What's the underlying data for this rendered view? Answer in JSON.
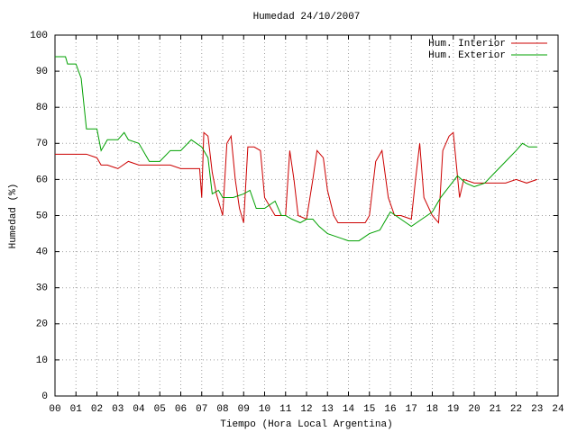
{
  "chart_data": {
    "type": "line",
    "title": "Humedad 24/10/2007",
    "x_label": "Tiempo (Hora Local Argentina)",
    "y_label": "Humedad (%)",
    "xlim": [
      0,
      24
    ],
    "ylim": [
      0,
      100
    ],
    "xticks": [
      {
        "value": 0,
        "label": "00"
      },
      {
        "value": 1,
        "label": "01"
      },
      {
        "value": 2,
        "label": "02"
      },
      {
        "value": 3,
        "label": "03"
      },
      {
        "value": 4,
        "label": "04"
      },
      {
        "value": 5,
        "label": "05"
      },
      {
        "value": 6,
        "label": "06"
      },
      {
        "value": 7,
        "label": "07"
      },
      {
        "value": 8,
        "label": "08"
      },
      {
        "value": 9,
        "label": "09"
      },
      10,
      11,
      12,
      13,
      14,
      15,
      16,
      17,
      18,
      19,
      20,
      21,
      22,
      23,
      24
    ],
    "yticks": [
      0,
      10,
      20,
      30,
      40,
      50,
      60,
      70,
      80,
      90,
      100
    ],
    "grid": true,
    "legend": "top-right",
    "series": [
      {
        "name": "Hum. Interior",
        "color": "#cc0000",
        "x": [
          0,
          0.5,
          1,
          1.5,
          2,
          2.2,
          2.5,
          3,
          3.5,
          4,
          4.5,
          5,
          5.5,
          6,
          6.5,
          6.9,
          7.0,
          7.1,
          7.3,
          7.5,
          7.7,
          8.0,
          8.2,
          8.4,
          8.6,
          8.8,
          9.0,
          9.2,
          9.5,
          9.8,
          10.0,
          10.3,
          10.5,
          11.0,
          11.2,
          11.4,
          11.6,
          12.0,
          12.3,
          12.5,
          12.8,
          13.0,
          13.3,
          13.5,
          14.0,
          14.5,
          14.8,
          15.0,
          15.3,
          15.6,
          15.9,
          16.2,
          16.5,
          17.0,
          17.2,
          17.4,
          17.6,
          18.0,
          18.3,
          18.5,
          18.8,
          19.0,
          19.3,
          19.5,
          20.0,
          20.5,
          21.0,
          21.5,
          22.0,
          22.5,
          23.0
        ],
        "values": [
          67,
          67,
          67,
          67,
          66,
          64,
          64,
          63,
          65,
          64,
          64,
          64,
          64,
          63,
          63,
          63,
          55,
          73,
          72,
          62,
          56,
          50,
          70,
          72,
          60,
          52,
          48,
          69,
          69,
          68,
          55,
          52,
          50,
          50,
          68,
          60,
          50,
          49,
          60,
          68,
          66,
          57,
          50,
          48,
          48,
          48,
          48,
          50,
          65,
          68,
          55,
          50,
          50,
          49,
          60,
          70,
          55,
          50,
          48,
          68,
          72,
          73,
          55,
          60,
          59,
          59,
          59,
          59,
          60,
          59,
          60
        ]
      },
      {
        "name": "Hum. Exterior",
        "color": "#00a000",
        "x": [
          0,
          0.5,
          0.6,
          1.0,
          1.25,
          1.5,
          1.75,
          2.0,
          2.2,
          2.5,
          3.0,
          3.3,
          3.5,
          4.0,
          4.5,
          5.0,
          5.5,
          6.0,
          6.5,
          7.0,
          7.3,
          7.5,
          7.8,
          8.0,
          8.5,
          9.0,
          9.3,
          9.6,
          10.0,
          10.5,
          10.8,
          11.0,
          11.3,
          11.7,
          12.0,
          12.3,
          12.6,
          13.0,
          13.5,
          14.0,
          14.5,
          15.0,
          15.5,
          16.0,
          16.5,
          17.0,
          17.5,
          18.0,
          18.4,
          18.8,
          19.2,
          19.6,
          20.0,
          20.5,
          21.0,
          21.5,
          22.0,
          22.3,
          22.6,
          23.0
        ],
        "values": [
          94,
          94,
          92,
          92,
          88,
          74,
          74,
          74,
          68,
          71,
          71,
          73,
          71,
          70,
          65,
          65,
          68,
          68,
          71,
          69,
          66,
          56,
          57,
          55,
          55,
          56,
          57,
          52,
          52,
          54,
          50,
          50,
          49,
          48,
          49,
          49,
          47,
          45,
          44,
          43,
          43,
          45,
          46,
          51,
          49,
          47,
          49,
          51,
          55,
          58,
          61,
          59,
          58,
          59,
          62,
          65,
          68,
          70,
          69,
          69
        ]
      }
    ]
  }
}
